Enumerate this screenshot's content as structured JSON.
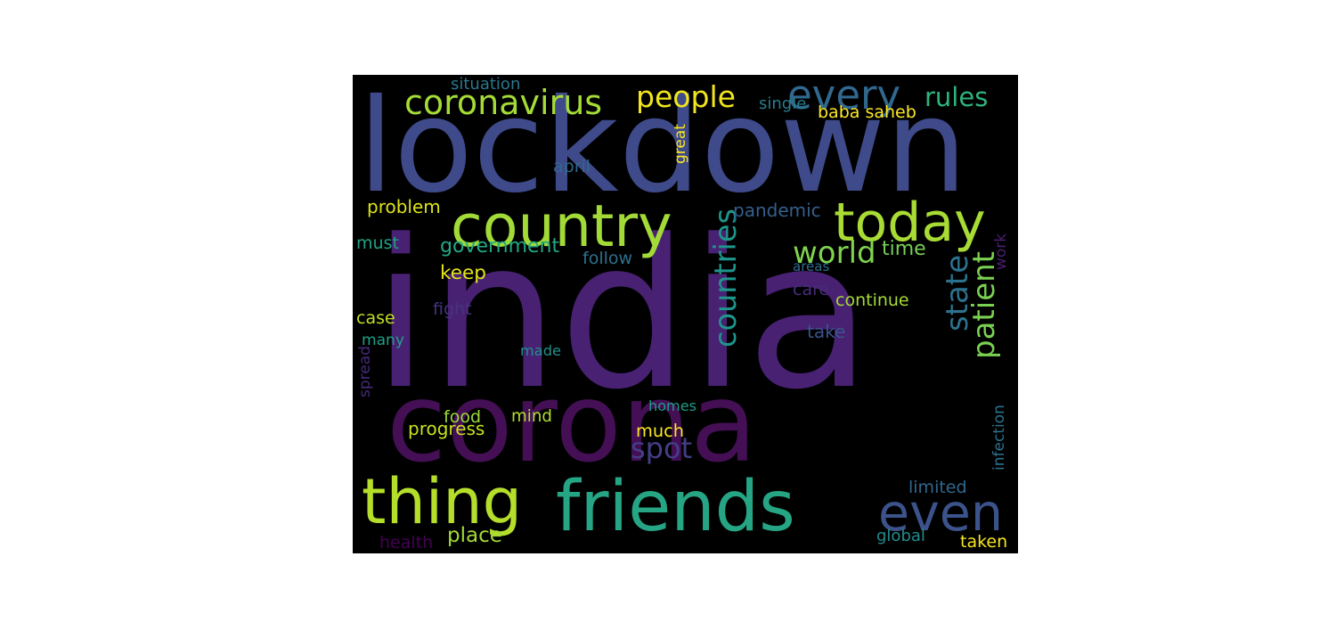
{
  "wordcloud": {
    "background": "#000000",
    "words": [
      {
        "text": "india",
        "color": "#482173"
      },
      {
        "text": "lockdown",
        "color": "#3e4a89"
      },
      {
        "text": "corona",
        "color": "#440f54"
      },
      {
        "text": "friends",
        "color": "#25a584"
      },
      {
        "text": "country",
        "color": "#a2da37"
      },
      {
        "text": "thing",
        "color": "#b5de2b"
      },
      {
        "text": "today",
        "color": "#a8db34"
      },
      {
        "text": "even",
        "color": "#3b528b"
      },
      {
        "text": "every",
        "color": "#31688e"
      },
      {
        "text": "coronavirus",
        "color": "#a5db36"
      },
      {
        "text": "people",
        "color": "#f1e51d"
      },
      {
        "text": "rules",
        "color": "#2eb37c"
      },
      {
        "text": "countries",
        "color": "#1f958b"
      },
      {
        "text": "world",
        "color": "#7fd34e"
      },
      {
        "text": "state",
        "color": "#2c728e"
      },
      {
        "text": "patient",
        "color": "#7ad151"
      },
      {
        "text": "spot",
        "color": "#433e85"
      },
      {
        "text": "much",
        "color": "#fde725"
      },
      {
        "text": "government",
        "color": "#22a884"
      },
      {
        "text": "problem",
        "color": "#dde318"
      },
      {
        "text": "pandemic",
        "color": "#355f8d"
      },
      {
        "text": "keep",
        "color": "#e5e419"
      },
      {
        "text": "time",
        "color": "#75d054"
      },
      {
        "text": "situation",
        "color": "#2a788e"
      },
      {
        "text": "single",
        "color": "#287c8e"
      },
      {
        "text": "baba saheb",
        "color": "#fde725"
      },
      {
        "text": "april",
        "color": "#31688e"
      },
      {
        "text": "great",
        "color": "#fde725"
      },
      {
        "text": "must",
        "color": "#20a386"
      },
      {
        "text": "follow",
        "color": "#2d708e"
      },
      {
        "text": "areas",
        "color": "#2f6c8e"
      },
      {
        "text": "care",
        "color": "#472d7b"
      },
      {
        "text": "continue",
        "color": "#a5db36"
      },
      {
        "text": "work",
        "color": "#481f70"
      },
      {
        "text": "fight",
        "color": "#46337f"
      },
      {
        "text": "case",
        "color": "#c2df23"
      },
      {
        "text": "take",
        "color": "#3a548c"
      },
      {
        "text": "many",
        "color": "#1fa188"
      },
      {
        "text": "made",
        "color": "#21918c"
      },
      {
        "text": "spread",
        "color": "#472a7a"
      },
      {
        "text": "homes",
        "color": "#1e9c89"
      },
      {
        "text": "food",
        "color": "#9dd93b"
      },
      {
        "text": "mind",
        "color": "#b0dd2f"
      },
      {
        "text": "progress",
        "color": "#c8e020"
      },
      {
        "text": "infection",
        "color": "#2c728e"
      },
      {
        "text": "limited",
        "color": "#31688e"
      },
      {
        "text": "place",
        "color": "#a2da37"
      },
      {
        "text": "health",
        "color": "#440154"
      },
      {
        "text": "global",
        "color": "#228d8d"
      },
      {
        "text": "taken",
        "color": "#f6e620"
      }
    ]
  }
}
